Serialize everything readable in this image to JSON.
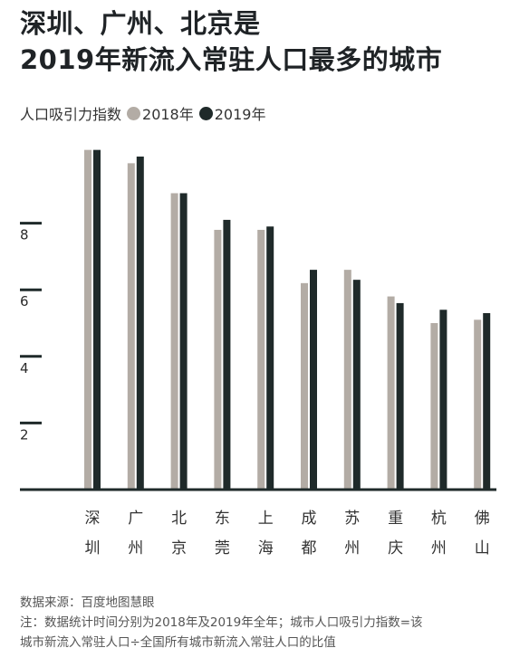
{
  "title": {
    "line1": "深圳、广州、北京是",
    "line2": "2019年新流入常驻人口最多的城市"
  },
  "legend": {
    "metric_label": "人口吸引力指数",
    "series_2018": "2018年",
    "series_2019": "2019年"
  },
  "colors": {
    "series_2018": "#b3aca5",
    "series_2019": "#1f2a2a",
    "axis": "#1f2a2a"
  },
  "chart_data": {
    "type": "bar",
    "categories": [
      "深圳",
      "广州",
      "北京",
      "东莞",
      "上海",
      "成都",
      "苏州",
      "重庆",
      "杭州",
      "佛山"
    ],
    "series": [
      {
        "name": "2018年",
        "values": [
          10.2,
          9.8,
          8.9,
          7.8,
          7.8,
          6.2,
          6.6,
          5.8,
          5.0,
          5.1
        ]
      },
      {
        "name": "2019年",
        "values": [
          10.2,
          10.0,
          8.9,
          8.1,
          7.9,
          6.6,
          6.3,
          5.6,
          5.4,
          5.3
        ]
      }
    ],
    "yticks": [
      "2",
      "4",
      "6",
      "8"
    ],
    "ylim": [
      0,
      10.5
    ],
    "xlabel": "",
    "ylabel": ""
  },
  "footer": {
    "source": "数据来源：百度地图慧眼",
    "note_line1": "注：数据统计时间分别为2018年及2019年全年；城市人口吸引力指数=该",
    "note_line2": "城市新流入常驻人口÷全国所有城市新流入常驻人口的比值"
  }
}
